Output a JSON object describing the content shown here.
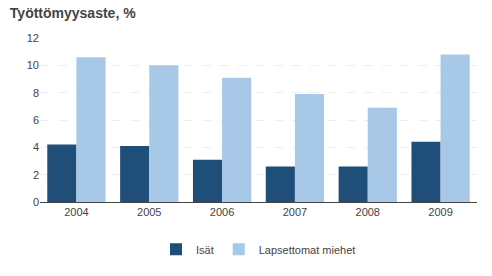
{
  "chart_data": {
    "type": "bar",
    "title": "Työttömyysaste, %",
    "categories": [
      "2004",
      "2005",
      "2006",
      "2007",
      "2008",
      "2009"
    ],
    "series": [
      {
        "name": "Isät",
        "color": "#1F4E79",
        "values": [
          4.2,
          4.1,
          3.1,
          2.6,
          2.6,
          4.4
        ]
      },
      {
        "name": "Lapsettomat miehet",
        "color": "#A8C8E8",
        "values": [
          10.6,
          10.0,
          9.1,
          7.9,
          6.9,
          10.8
        ]
      }
    ],
    "ylim": [
      0,
      12
    ],
    "yticks": [
      0,
      2,
      4,
      6,
      8,
      10,
      12
    ],
    "grid": true,
    "legend": "bottom"
  }
}
